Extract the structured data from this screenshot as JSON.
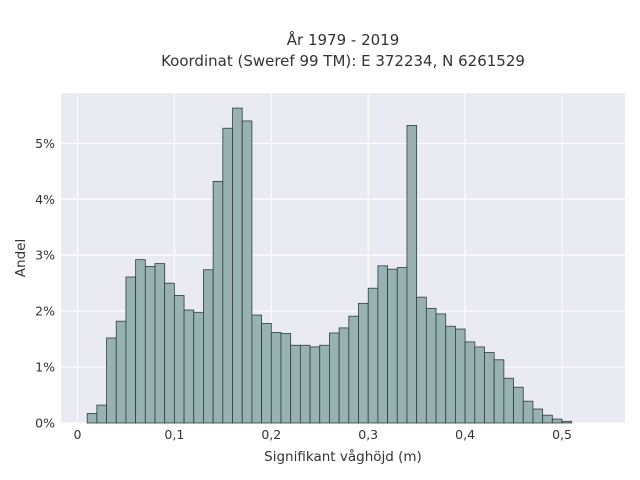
{
  "chart_data": {
    "type": "bar",
    "title_line1": "År 1979 - 2019",
    "title_line2": "Koordinat (Sweref 99 TM): E 372234, N 6261529",
    "xlabel": "Signifikant våghöjd (m)",
    "ylabel": "Andel",
    "xlim": [
      -0.017,
      0.565
    ],
    "ylim": [
      0,
      5.9
    ],
    "x_ticks": [
      0,
      0.1,
      0.2,
      0.3,
      0.4,
      0.5
    ],
    "x_tick_labels": [
      "0",
      "0,1",
      "0,2",
      "0,3",
      "0,4",
      "0,5"
    ],
    "y_ticks": [
      0,
      1,
      2,
      3,
      4,
      5
    ],
    "y_tick_labels": [
      "0%",
      "1%",
      "2%",
      "3%",
      "4%",
      "5%"
    ],
    "bin_width": 0.01,
    "bin_starts": [
      0.01,
      0.02,
      0.03,
      0.04,
      0.05,
      0.06,
      0.07,
      0.08,
      0.09,
      0.1,
      0.11,
      0.12,
      0.13,
      0.14,
      0.15,
      0.16,
      0.17,
      0.18,
      0.19,
      0.2,
      0.21,
      0.22,
      0.23,
      0.24,
      0.25,
      0.26,
      0.27,
      0.28,
      0.29,
      0.3,
      0.31,
      0.32,
      0.33,
      0.34,
      0.35,
      0.36,
      0.37,
      0.38,
      0.39,
      0.4,
      0.41,
      0.42,
      0.43,
      0.44,
      0.45,
      0.46,
      0.47,
      0.48,
      0.49,
      0.5,
      0.51,
      0.52,
      0.53
    ],
    "values": [
      0.17,
      0.32,
      1.52,
      1.82,
      2.61,
      2.92,
      2.8,
      2.85,
      2.5,
      2.28,
      2.02,
      1.98,
      2.74,
      4.32,
      5.27,
      5.63,
      5.4,
      1.93,
      1.78,
      1.62,
      1.6,
      1.39,
      1.39,
      1.36,
      1.39,
      1.61,
      1.7,
      1.91,
      2.14,
      2.41,
      2.81,
      2.75,
      2.78,
      5.32,
      2.25,
      2.05,
      1.95,
      1.73,
      1.68,
      1.45,
      1.36,
      1.26,
      1.13,
      0.8,
      0.64,
      0.39,
      0.25,
      0.14,
      0.07,
      0.03,
      0,
      0,
      0
    ],
    "colors": {
      "bar_fill": "#98b1b1",
      "bar_stroke": "#2f3e3e",
      "plot_bg": "#eaeaf2",
      "grid": "#ffffff"
    },
    "grid": true
  }
}
